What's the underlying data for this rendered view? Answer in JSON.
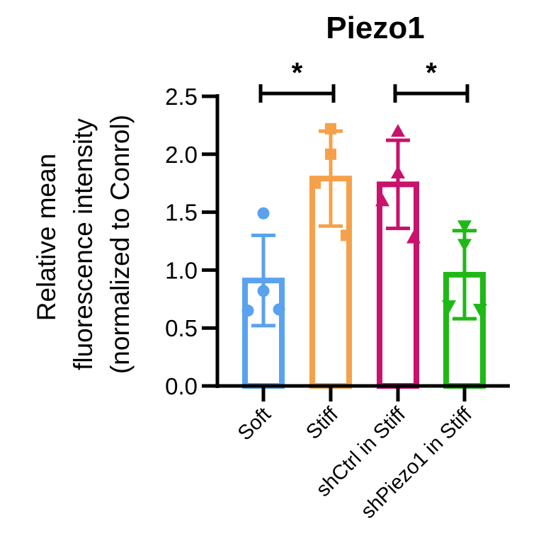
{
  "chart_data": {
    "type": "bar",
    "title": "Piezo1",
    "ylabel_lines": [
      "Relative mean",
      "fluorescence intensity",
      "(normalized to Conrol)"
    ],
    "xlabel": "",
    "ylim": [
      0,
      2.5
    ],
    "yticks": [
      "0.0",
      "0.5",
      "1.0",
      "1.5",
      "2.0",
      "2.5"
    ],
    "categories": [
      "Soft",
      "Stiff",
      "shCtrl in Stiff",
      "shPiezo1 in Stiff"
    ],
    "values": [
      0.91,
      1.79,
      1.74,
      0.96
    ],
    "sd": [
      0.39,
      0.41,
      0.38,
      0.38
    ],
    "points": [
      [
        1.49,
        0.82,
        0.65,
        0.66
      ],
      [
        2.22,
        2.0,
        1.75,
        1.3
      ],
      [
        2.2,
        1.84,
        1.6,
        1.28
      ],
      [
        1.38,
        1.22,
        0.69,
        0.66
      ]
    ],
    "markers": [
      "circle",
      "square",
      "triangle-up",
      "triangle-down"
    ],
    "colors": [
      "#5aa2ee",
      "#f6a149",
      "#c8126c",
      "#20b816"
    ],
    "significance": [
      {
        "from": 0,
        "to": 1,
        "label": "*"
      },
      {
        "from": 2,
        "to": 3,
        "label": "*"
      }
    ]
  }
}
